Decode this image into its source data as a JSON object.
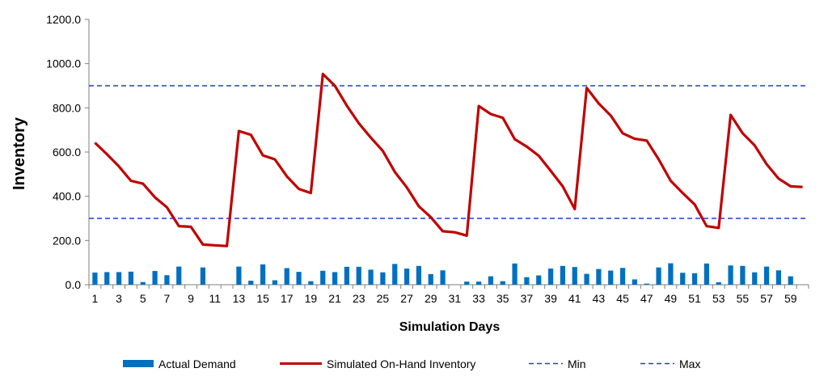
{
  "chart_data": {
    "type": "bar+line",
    "xlabel": "Simulation Days",
    "ylabel": "Inventory",
    "ylim": [
      0,
      1200
    ],
    "yticks": [
      "0.0",
      "200.0",
      "400.0",
      "600.0",
      "800.0",
      "1000.0",
      "1200.0"
    ],
    "x": [
      1,
      2,
      3,
      4,
      5,
      6,
      7,
      8,
      9,
      10,
      11,
      12,
      13,
      14,
      15,
      16,
      17,
      18,
      19,
      20,
      21,
      22,
      23,
      24,
      25,
      26,
      27,
      28,
      29,
      30,
      31,
      32,
      33,
      34,
      35,
      36,
      37,
      38,
      39,
      40,
      41,
      42,
      43,
      44,
      45,
      46,
      47,
      48,
      49,
      50,
      51,
      52,
      53,
      54,
      55,
      56,
      57,
      58,
      59,
      60
    ],
    "xtick_labels": [
      "1",
      "3",
      "5",
      "7",
      "9",
      "11",
      "13",
      "15",
      "17",
      "19",
      "21",
      "23",
      "25",
      "27",
      "29",
      "31",
      "33",
      "35",
      "37",
      "39",
      "41",
      "43",
      "45",
      "47",
      "49",
      "51",
      "53",
      "55",
      "57",
      "59"
    ],
    "grid": false,
    "legend_position": "bottom",
    "series": [
      {
        "name": "Actual Demand",
        "kind": "bar",
        "color": "#0070C0",
        "values": [
          55,
          57,
          57,
          59,
          12,
          62,
          43,
          82,
          0,
          78,
          0,
          0,
          82,
          18,
          92,
          20,
          75,
          58,
          16,
          63,
          57,
          81,
          81,
          68,
          56,
          94,
          73,
          85,
          48,
          65,
          0,
          14,
          14,
          38,
          16,
          96,
          34,
          42,
          73,
          85,
          80,
          49,
          71,
          64,
          76,
          24,
          5,
          78,
          97,
          54,
          52,
          96,
          11,
          87,
          85,
          56,
          82,
          65,
          38,
          0
        ],
        "values_note": ""
      },
      {
        "name": "Simulated On-Hand Inventory",
        "kind": "line",
        "color": "#C00000",
        "values": [
          642,
          590,
          535,
          470,
          457,
          395,
          350,
          265,
          262,
          182,
          178,
          175,
          695,
          678,
          585,
          567,
          490,
          433,
          415,
          953,
          900,
          810,
          730,
          665,
          605,
          510,
          440,
          355,
          305,
          242,
          237,
          222,
          808,
          772,
          755,
          658,
          625,
          583,
          515,
          445,
          342,
          890,
          820,
          765,
          685,
          660,
          652,
          567,
          470,
          415,
          363,
          265,
          257,
          768,
          685,
          630,
          545,
          480,
          445,
          442
        ]
      },
      {
        "name": "Min",
        "kind": "reference-line",
        "color": "#1F3FD6",
        "value": 300
      },
      {
        "name": "Max",
        "kind": "reference-line",
        "color": "#1F3FD6",
        "value": 900
      }
    ]
  }
}
